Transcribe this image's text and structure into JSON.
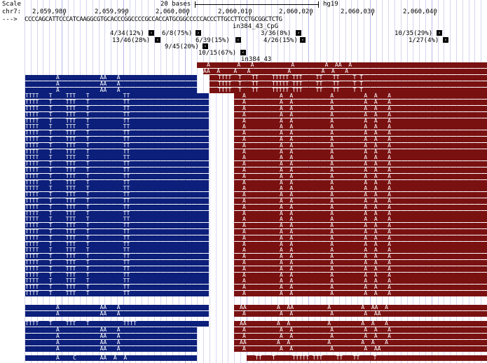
{
  "ruler": {
    "scale_label": "Scale",
    "span_label": "20 bases",
    "assembly": "hg19",
    "chrom_label": "chr7:",
    "strand_label": "--->",
    "coords": [
      "2,059,980",
      "2,059,990",
      "2,060,000",
      "2,060,010",
      "2,060,020",
      "2,060,030",
      "2,060,040"
    ],
    "sequence": "CCCCAGCATTCCCATCAAGGCGTGCACCCGGCCCCGCCACCATGCGGCCCCCACCCTTGCCTTCCTGCGGCTCTG"
  },
  "annotations": {
    "cpg_track": "in384_43_CpG",
    "read_track": "in384_43",
    "methylation_calls": [
      "4/34(12%)",
      "6/8(75%)",
      "3/36(8%)",
      "10/35(29%)",
      "13/46(28%)",
      "6/39(15%)",
      "4/26(15%)",
      "1/27(4%)",
      "9/45(20%)",
      "10/15(67%)"
    ]
  },
  "colors": {
    "forward_read": "#0c1f7a",
    "reverse_read": "#7a1111",
    "grid": "#d6d6ee"
  },
  "legend_icon": "strand-box-icon"
}
